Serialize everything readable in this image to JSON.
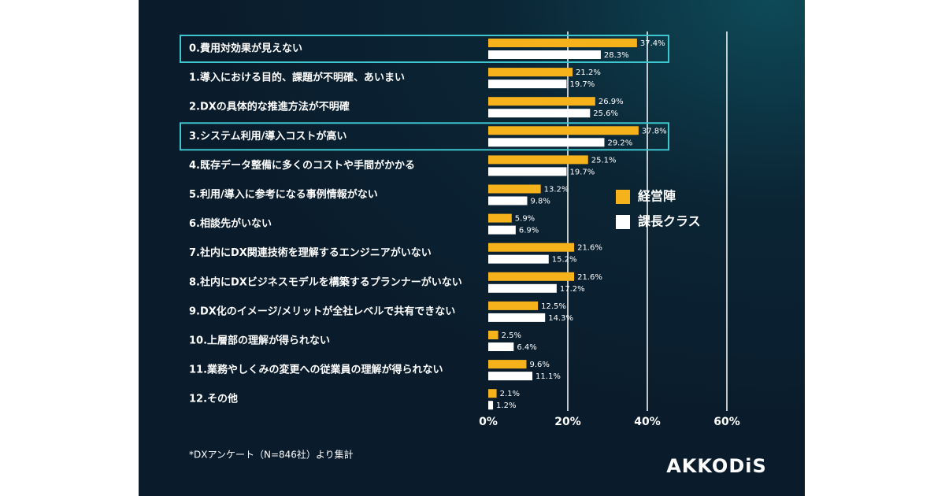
{
  "chart_data": {
    "type": "barh",
    "categories": [
      "0.費用対効果が見えない",
      "1.導入における目的、課題が不明確、あいまい",
      "2.DXの具体的な推進方法が不明確",
      "3.システム利用/導入コストが高い",
      "4.既存データ整備に多くのコストや手間がかかる",
      "5.利用/導入に参考になる事例情報がない",
      "6.相談先がいない",
      "7.社内にDX関連技術を理解するエンジニアがいない",
      "8.社内にDXビジネスモデルを構築するプランナーがいない",
      "9.DX化のイメージ/メリットが全社レベルで共有できない",
      "10.上層部の理解が得られない",
      "11.業務やしくみの変更への従業員の理解が得られない",
      "12.その他"
    ],
    "series": [
      {
        "name": "経営陣",
        "color": "#f5b21b",
        "values": [
          37.4,
          21.2,
          26.9,
          37.8,
          25.1,
          13.2,
          5.9,
          21.6,
          21.6,
          12.5,
          2.5,
          9.6,
          2.1
        ],
        "value_labels": [
          "37.4%",
          "21.2%",
          "26.9%",
          "37.8%",
          "25.1%",
          "13.2%",
          "5.9%",
          "21.6%",
          "21.6%",
          "12.5%",
          "2.5%",
          "9.6%",
          "2.1%"
        ]
      },
      {
        "name": "課長クラス",
        "color": "#ffffff",
        "values": [
          28.3,
          19.7,
          25.6,
          29.2,
          19.7,
          9.8,
          6.9,
          15.2,
          17.2,
          14.3,
          6.4,
          11.1,
          1.2
        ],
        "value_labels": [
          "28.3%",
          "19.7%",
          "25.6%",
          "29.2%",
          "19.7%",
          "9.8%",
          "6.9%",
          "15.2%",
          "17.2%",
          "14.3%",
          "6.4%",
          "11.1%",
          "1.2%"
        ]
      }
    ],
    "xlim": [
      0,
      60
    ],
    "xticks": [
      {
        "value": 0,
        "label": "0%"
      },
      {
        "value": 20,
        "label": "20%"
      },
      {
        "value": 40,
        "label": "40%"
      },
      {
        "value": 60,
        "label": "60%"
      }
    ],
    "grid": true,
    "highlight": [
      0,
      3
    ],
    "footnote": "*DXアンケート（N=846社）より集計",
    "logo": "AKKODiS"
  }
}
